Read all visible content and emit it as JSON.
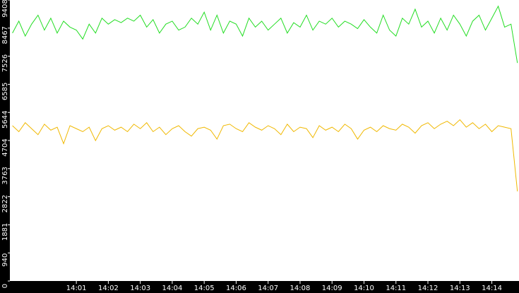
{
  "chart_data": {
    "type": "line",
    "x": [
      839,
      839.2,
      839.4,
      839.6,
      839.8,
      840,
      840.2,
      840.4,
      840.6,
      840.8,
      841,
      841.2,
      841.4,
      841.6,
      841.8,
      842,
      842.2,
      842.4,
      842.6,
      842.8,
      843,
      843.2,
      843.4,
      843.6,
      843.8,
      844,
      844.2,
      844.4,
      844.6,
      844.8,
      845,
      845.2,
      845.4,
      845.6,
      845.8,
      846,
      846.2,
      846.4,
      846.6,
      846.8,
      847,
      847.2,
      847.4,
      847.6,
      847.8,
      848,
      848.2,
      848.4,
      848.6,
      848.8,
      849,
      849.2,
      849.4,
      849.6,
      849.8,
      850,
      850.2,
      850.4,
      850.6,
      850.8,
      851,
      851.2,
      851.4,
      851.6,
      851.8,
      852,
      852.2,
      852.4,
      852.6,
      852.8,
      853,
      853.2,
      853.4,
      853.6,
      853.8,
      854,
      854.2,
      854.4,
      854.6,
      854.8
    ],
    "series": [
      {
        "color": "#22dd22",
        "values": [
          8300,
          8700,
          8200,
          8600,
          8900,
          8400,
          8800,
          8300,
          8700,
          8500,
          8400,
          8100,
          8600,
          8300,
          8800,
          8600,
          8750,
          8650,
          8800,
          8700,
          8900,
          8500,
          8750,
          8300,
          8600,
          8700,
          8400,
          8500,
          8800,
          8600,
          9000,
          8400,
          8900,
          8300,
          8700,
          8600,
          8200,
          8800,
          8500,
          8700,
          8400,
          8600,
          8800,
          8300,
          8650,
          8500,
          8900,
          8400,
          8700,
          8600,
          8800,
          8500,
          8700,
          8600,
          8450,
          8750,
          8500,
          8300,
          8900,
          8400,
          8200,
          8800,
          8600,
          9100,
          8500,
          8700,
          8300,
          8800,
          8400,
          8900,
          8600,
          8200,
          8700,
          8900,
          8400,
          8800,
          9200,
          8500,
          8600,
          7300
        ]
      },
      {
        "color": "#f0b800",
        "values": [
          5200,
          5000,
          5300,
          5100,
          4900,
          5250,
          5050,
          5150,
          4600,
          5200,
          5100,
          5000,
          5150,
          4700,
          5100,
          5200,
          5050,
          5150,
          5000,
          5250,
          5100,
          5300,
          5000,
          5150,
          4900,
          5100,
          5200,
          5000,
          4850,
          5100,
          5150,
          5050,
          4750,
          5200,
          5250,
          5100,
          5000,
          5300,
          5150,
          5050,
          5200,
          5100,
          4900,
          5250,
          5000,
          5150,
          5100,
          4800,
          5200,
          5050,
          5150,
          5000,
          5250,
          5100,
          4750,
          5050,
          5150,
          5000,
          5200,
          5100,
          5050,
          5250,
          5150,
          4950,
          5200,
          5300,
          5100,
          5250,
          5350,
          5200,
          5400,
          5150,
          5300,
          5100,
          5250,
          5000,
          5200,
          5150,
          5100,
          3000
        ]
      }
    ],
    "xlim": [
      838.92,
      854.85
    ],
    "xticks": [
      {
        "value": 841,
        "label": "14:01"
      },
      {
        "value": 842,
        "label": "14:02"
      },
      {
        "value": 843,
        "label": "14:03"
      },
      {
        "value": 844,
        "label": "14:04"
      },
      {
        "value": 845,
        "label": "14:05"
      },
      {
        "value": 846,
        "label": "14:06"
      },
      {
        "value": 847,
        "label": "14:07"
      },
      {
        "value": 848,
        "label": "14:08"
      },
      {
        "value": 849,
        "label": "14:09"
      },
      {
        "value": 850,
        "label": "14:10"
      },
      {
        "value": 851,
        "label": "14:11"
      },
      {
        "value": 852,
        "label": "14:12"
      },
      {
        "value": 853,
        "label": "14:13"
      },
      {
        "value": 854,
        "label": "14:14"
      }
    ],
    "ylim": [
      0,
      9408
    ],
    "yticks": [
      0,
      940,
      1881,
      2822,
      3763,
      4704,
      5644,
      6585,
      7526,
      8467,
      9408
    ]
  }
}
